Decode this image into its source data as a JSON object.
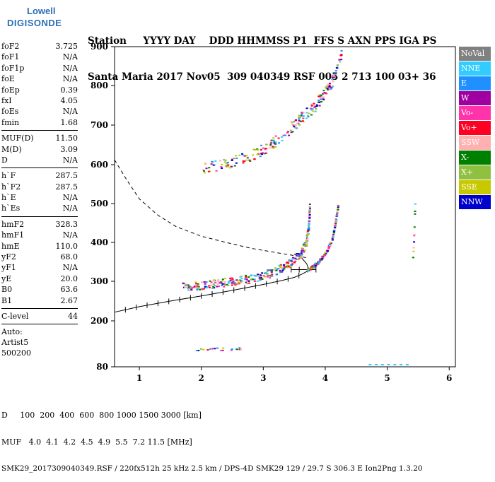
{
  "logo": {
    "line1": "Lowell",
    "line2": "DIGISONDE"
  },
  "header": {
    "row1": "Station     YYYY DAY    DDD HHMMSS P1  FFS S AXN PPS IGA PS",
    "row2": "Santa Maria 2017 Nov05  309 040349 RSF 005 2 713 100 03+ 36"
  },
  "sidebar": {
    "groups": [
      [
        {
          "k": "foF2",
          "v": "3.725"
        },
        {
          "k": "foF1",
          "v": "N/A"
        },
        {
          "k": "foF1p",
          "v": "N/A"
        },
        {
          "k": "foE",
          "v": "N/A"
        },
        {
          "k": "foEp",
          "v": "0.39"
        },
        {
          "k": "fxI",
          "v": "4.05"
        },
        {
          "k": "foEs",
          "v": "N/A"
        },
        {
          "k": "fmin",
          "v": "1.68"
        }
      ],
      [
        {
          "k": "MUF(D)",
          "v": "11.50"
        },
        {
          "k": "M(D)",
          "v": "3.09"
        },
        {
          "k": "D",
          "v": "N/A"
        }
      ],
      [
        {
          "k": "h`F",
          "v": "287.5"
        },
        {
          "k": "h`F2",
          "v": "287.5"
        },
        {
          "k": "h`E",
          "v": "N/A"
        },
        {
          "k": "h`Es",
          "v": "N/A"
        }
      ],
      [
        {
          "k": "hmF2",
          "v": "328.3"
        },
        {
          "k": "hmF1",
          "v": "N/A"
        },
        {
          "k": "hmE",
          "v": "110.0"
        },
        {
          "k": "yF2",
          "v": "68.0"
        },
        {
          "k": "yF1",
          "v": "N/A"
        },
        {
          "k": "yE",
          "v": "20.0"
        },
        {
          "k": "B0",
          "v": "63.6"
        },
        {
          "k": "B1",
          "v": "2.67"
        }
      ],
      [
        {
          "k": "C-level",
          "v": "44"
        }
      ]
    ],
    "notes": [
      "Auto:",
      "Artist5",
      "500200"
    ]
  },
  "legend": [
    {
      "label": "NoVal",
      "color": "#808080"
    },
    {
      "label": "NNE",
      "color": "#33ccff"
    },
    {
      "label": "E",
      "color": "#1e90ff"
    },
    {
      "label": "W",
      "color": "#a000a0"
    },
    {
      "label": "Vo-",
      "color": "#ff33aa"
    },
    {
      "label": "Vo+",
      "color": "#ff0022"
    },
    {
      "label": "SSW",
      "color": "#ffb0b0"
    },
    {
      "label": "X-",
      "color": "#008000"
    },
    {
      "label": "X+",
      "color": "#90c040"
    },
    {
      "label": "SSE",
      "color": "#c8c800"
    },
    {
      "label": "NNW",
      "color": "#0000cc"
    }
  ],
  "footer": {
    "d_row": "D     100  200  400  600  800 1000 1500 3000 [km]",
    "muf_row": "MUF   4.0  4.1  4.2  4.5  4.9  5.5  7.2 11.5 [MHz]",
    "file_row": "SMK29_2017309040349.RSF / 220fx512h 25 kHz 2.5 km / DPS-4D SMK29 129 / 29.7 S 306.3 E Ion2Png 1.3.20"
  },
  "chart_data": {
    "type": "scatter",
    "title": "",
    "xlabel": "",
    "ylabel": "",
    "xlim": [
      0.6,
      6.1
    ],
    "ylim": [
      80,
      900
    ],
    "x_ticks": [
      1,
      2,
      3,
      4,
      5,
      6
    ],
    "y_ticks": [
      80,
      200,
      300,
      400,
      500,
      600,
      700,
      800,
      900
    ],
    "grid": false,
    "legend_placement": "right",
    "traces": [
      {
        "name": "F2 trace",
        "x": [
          1.68,
          1.9,
          2.1,
          2.3,
          2.5,
          2.7,
          2.9,
          3.1,
          3.3,
          3.45,
          3.6,
          3.68,
          3.72,
          3.74
        ],
        "y": [
          287,
          290,
          293,
          297,
          301,
          306,
          313,
          322,
          336,
          352,
          375,
          400,
          440,
          500
        ]
      },
      {
        "name": "F2 X-mode",
        "x": [
          3.7,
          3.8,
          3.9,
          4.0,
          4.1,
          4.15,
          4.2
        ],
        "y": [
          330,
          340,
          355,
          375,
          410,
          450,
          500
        ]
      },
      {
        "name": "Second hop",
        "x": [
          2.0,
          2.4,
          2.8,
          3.1,
          3.4,
          3.6,
          3.8,
          3.95,
          4.1,
          4.25
        ],
        "y": [
          592,
          605,
          625,
          650,
          690,
          720,
          745,
          775,
          810,
          880
        ]
      },
      {
        "name": "Es sporadic",
        "x": [
          1.9,
          2.1,
          2.3,
          2.5,
          2.65
        ],
        "y": [
          126,
          126,
          127,
          127,
          128
        ]
      },
      {
        "name": "Near 5.4 MHz",
        "x": [
          5.4,
          5.42,
          5.44
        ],
        "y": [
          350,
          420,
          515
        ]
      }
    ],
    "profile": {
      "x": [
        0.6,
        1.0,
        1.5,
        2.0,
        2.5,
        3.0,
        3.3,
        3.5,
        3.62,
        3.7,
        3.72,
        3.725,
        3.7,
        3.62,
        3.5
      ],
      "y": [
        222,
        236,
        250,
        263,
        277,
        292,
        302,
        310,
        318,
        325,
        330,
        335,
        345,
        360,
        370
      ]
    },
    "dashed": {
      "x": [
        0.6,
        0.8,
        1.0,
        1.3,
        1.6,
        2.0,
        2.4,
        2.8,
        3.2,
        3.5,
        3.72
      ],
      "y": [
        612,
        560,
        512,
        470,
        440,
        416,
        400,
        385,
        374,
        366,
        360
      ]
    }
  }
}
